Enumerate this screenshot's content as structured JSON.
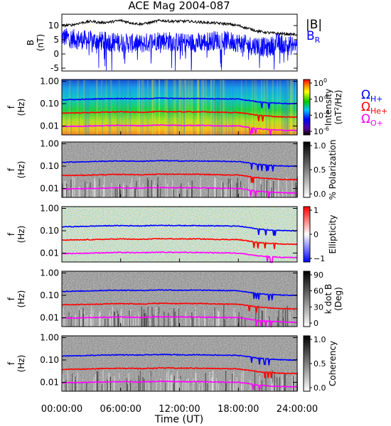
{
  "chart_data": {
    "type": "spectrogram",
    "title": "ACE Mag 2004-087",
    "xlabel": "Time (UT)",
    "xticks": [
      "00:00:00",
      "06:00:00",
      "12:00:00",
      "18:00:00",
      "24:00:00"
    ],
    "xlim_hours": [
      0,
      24
    ],
    "top_panel": {
      "type": "line",
      "ylabel_line1": "B",
      "ylabel_line2": "(nT)",
      "ylim": [
        -6,
        14
      ],
      "yticks": [
        "10",
        "5",
        "0",
        "-5"
      ],
      "legend": [
        "|B|",
        "B",
        "R"
      ],
      "series": [
        {
          "name": "|B|",
          "color": "#000000",
          "hours": [
            0,
            1,
            2,
            3,
            4,
            5,
            6,
            7,
            8,
            9,
            10,
            11,
            12,
            13,
            14,
            15,
            16,
            17,
            18,
            19,
            20,
            21,
            22,
            23,
            24
          ],
          "values": [
            10,
            10.2,
            11,
            11.5,
            11,
            11.3,
            11.8,
            11,
            10.5,
            11,
            11.8,
            11.5,
            11.5,
            11.5,
            11.2,
            11,
            10.8,
            10.5,
            10,
            9,
            8,
            7.5,
            7.2,
            7,
            6.8
          ]
        },
        {
          "name": "B_R",
          "color": "#0000ff",
          "hours": [
            0,
            2,
            4,
            6,
            8,
            10,
            12,
            14,
            16,
            18,
            19,
            20,
            21,
            22,
            23,
            24
          ],
          "values": [
            6,
            5,
            4.5,
            4,
            3.5,
            5,
            4,
            4,
            5,
            4,
            3,
            3,
            2,
            4,
            3,
            3
          ]
        }
      ]
    },
    "spectro_panels": [
      {
        "name": "intensity",
        "ylabel_line1": "f",
        "ylabel_line2": "(Hz)",
        "yticks": [
          "1.00",
          "0.10",
          "0.01"
        ],
        "ylim_hz": [
          0.004,
          1.2
        ],
        "colorbar": {
          "palette": "rainbow",
          "ticks": [
            "10",
            "10",
            "10",
            "10"
          ],
          "tick_exps": [
            "0",
            "-2",
            "-4",
            "-6"
          ],
          "label1": "Intensity",
          "label2": "(nT",
          "label2_exp": "2",
          "label2_rest": "/Hz)"
        },
        "legend": [
          {
            "sym": "Ω",
            "sub": "H+",
            "color": "#0000ff"
          },
          {
            "sym": "Ω",
            "sub": "He+",
            "color": "#ff0000"
          },
          {
            "sym": "Ω",
            "sub": "O+",
            "color": "#ff00ff"
          }
        ]
      },
      {
        "name": "polarization",
        "ylabel_line1": "f",
        "ylabel_line2": "(Hz)",
        "yticks": [
          "1.00",
          "0.10",
          "0.01"
        ],
        "ylim_hz": [
          0.004,
          1.2
        ],
        "colorbar": {
          "palette": "gray",
          "ticks": [
            "1.0",
            "0.5",
            "0.0"
          ],
          "label1": "% Polarization"
        }
      },
      {
        "name": "ellipticity",
        "ylabel_line1": "f",
        "ylabel_line2": "(Hz)",
        "yticks": [
          "1.00",
          "0.10",
          "0.01"
        ],
        "ylim_hz": [
          0.004,
          1.2
        ],
        "colorbar": {
          "palette": "bwr",
          "ticks": [
            "1",
            "0",
            "−1"
          ],
          "label1": "Ellipticity"
        }
      },
      {
        "name": "kdotb",
        "ylabel_line1": "f",
        "ylabel_line2": "(Hz)",
        "yticks": [
          "1.00",
          "0.10",
          "0.01"
        ],
        "ylim_hz": [
          0.004,
          1.2
        ],
        "colorbar": {
          "palette": "gray",
          "ticks": [
            "90",
            "60",
            "30",
            "0"
          ],
          "label1": "k dot B",
          "label2": "(Deg)"
        }
      },
      {
        "name": "coherency",
        "ylabel_line1": "f",
        "ylabel_line2": "(Hz)",
        "yticks": [
          "1.00",
          "0.10",
          "0.01"
        ],
        "ylim_hz": [
          0.004,
          1.2
        ],
        "colorbar": {
          "palette": "gray",
          "ticks": [
            "1.0",
            "0.5",
            "0.0"
          ],
          "label1": "Coherency"
        }
      }
    ],
    "gyrofrequency_lines": [
      {
        "name": "H+",
        "color": "#0000ff",
        "hours": [
          0,
          2,
          4,
          6,
          8,
          10,
          12,
          14,
          16,
          18,
          19,
          20,
          21,
          22,
          23,
          24
        ],
        "hz": [
          0.15,
          0.155,
          0.165,
          0.17,
          0.165,
          0.175,
          0.17,
          0.17,
          0.165,
          0.16,
          0.14,
          0.12,
          0.11,
          0.105,
          0.1,
          0.1
        ]
      },
      {
        "name": "He+",
        "color": "#ff0000",
        "hours": [
          0,
          2,
          4,
          6,
          8,
          10,
          12,
          14,
          16,
          18,
          19,
          20,
          21,
          22,
          23,
          24
        ],
        "hz": [
          0.038,
          0.039,
          0.041,
          0.043,
          0.041,
          0.044,
          0.043,
          0.043,
          0.041,
          0.04,
          0.035,
          0.03,
          0.028,
          0.026,
          0.025,
          0.025
        ]
      },
      {
        "name": "O+",
        "color": "#ff00ff",
        "hours": [
          0,
          2,
          4,
          6,
          8,
          10,
          12,
          14,
          16,
          18,
          19,
          20,
          21,
          22,
          23,
          24
        ],
        "hz": [
          0.0095,
          0.0098,
          0.0103,
          0.0107,
          0.0103,
          0.011,
          0.0107,
          0.0107,
          0.0103,
          0.01,
          0.0088,
          0.0075,
          0.007,
          0.0066,
          0.0063,
          0.0063
        ]
      }
    ]
  }
}
